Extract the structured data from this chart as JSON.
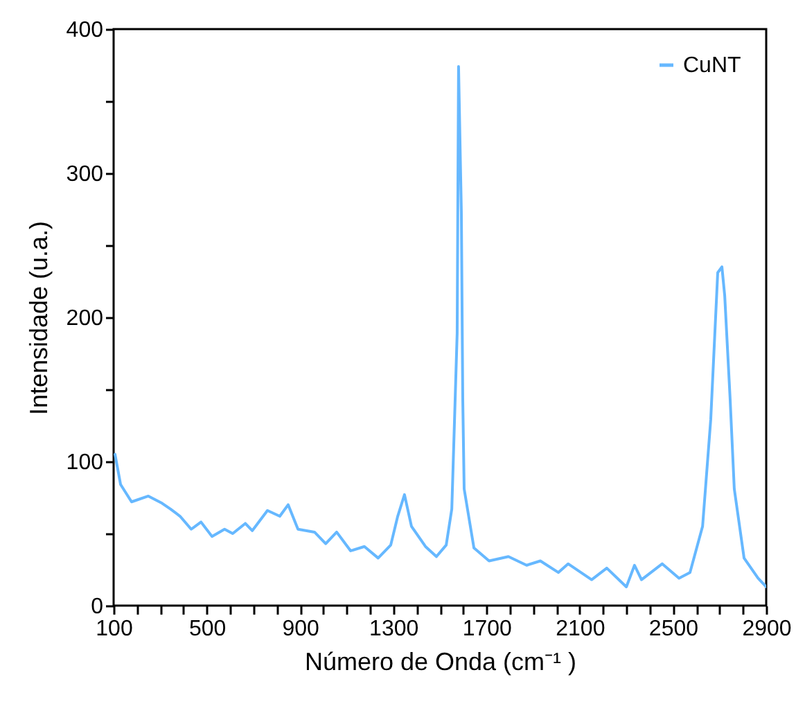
{
  "chart_data": {
    "type": "line",
    "xlabel": "Número de Onda (cm⁻¹ )",
    "ylabel": "Intensidade (u.a.)",
    "x": [
      106,
      130,
      177,
      249,
      308,
      344,
      385,
      433,
      475,
      522,
      576,
      611,
      665,
      695,
      760,
      813,
      849,
      891,
      962,
      1010,
      1057,
      1117,
      1176,
      1235,
      1289,
      1319,
      1348,
      1378,
      1438,
      1485,
      1527,
      1551,
      1562,
      1574,
      1580,
      1592,
      1598,
      1604,
      1646,
      1711,
      1794,
      1872,
      1931,
      2008,
      2050,
      2151,
      2216,
      2300,
      2335,
      2365,
      2454,
      2526,
      2573,
      2627,
      2662,
      2692,
      2710,
      2722,
      2745,
      2763,
      2805,
      2865,
      2900
    ],
    "series": [
      {
        "name": "CuNT",
        "color": "#66b8ff",
        "values": [
          105,
          84,
          72,
          76,
          71,
          67,
          62,
          53,
          58,
          48,
          53,
          50,
          57,
          52,
          66,
          62,
          70,
          53,
          51,
          43,
          51,
          38,
          41,
          33,
          42,
          62,
          77,
          55,
          41,
          34,
          42,
          67,
          125,
          189,
          374,
          273,
          144,
          81,
          40,
          31,
          34,
          28,
          31,
          23,
          29,
          18,
          26,
          13,
          28,
          18,
          29,
          19,
          23,
          55,
          129,
          231,
          235,
          215,
          144,
          81,
          33,
          19,
          13
        ]
      }
    ],
    "xlim": [
      100,
      2900
    ],
    "xticks": [
      100,
      {
        "value": 200,
        "label": null
      },
      {
        "value": 300,
        "label": null
      },
      {
        "value": 400,
        "label": null
      },
      500,
      {
        "value": 600,
        "label": null
      },
      {
        "value": 700,
        "label": null
      },
      {
        "value": 800,
        "label": null
      },
      900,
      {
        "value": 1000,
        "label": null
      },
      {
        "value": 1100,
        "label": null
      },
      {
        "value": 1200,
        "label": null
      },
      1300,
      {
        "value": 1400,
        "label": null
      },
      {
        "value": 1500,
        "label": null
      },
      {
        "value": 1600,
        "label": null
      },
      1700,
      {
        "value": 1800,
        "label": null
      },
      {
        "value": 1900,
        "label": null
      },
      {
        "value": 2000,
        "label": null
      },
      2100,
      {
        "value": 2200,
        "label": null
      },
      {
        "value": 2300,
        "label": null
      },
      {
        "value": 2400,
        "label": null
      },
      2500,
      {
        "value": 2600,
        "label": null
      },
      {
        "value": 2700,
        "label": null
      },
      {
        "value": 2800,
        "label": null
      },
      2900
    ],
    "ylim": [
      0,
      400
    ],
    "yticks": [
      0,
      {
        "value": 50,
        "label": null
      },
      100,
      {
        "value": 150,
        "label": null
      },
      200,
      {
        "value": 250,
        "label": null
      },
      300,
      {
        "value": 350,
        "label": null
      },
      400
    ],
    "legend": "top right",
    "grid": false,
    "marker": "none",
    "line_style": "solid"
  }
}
